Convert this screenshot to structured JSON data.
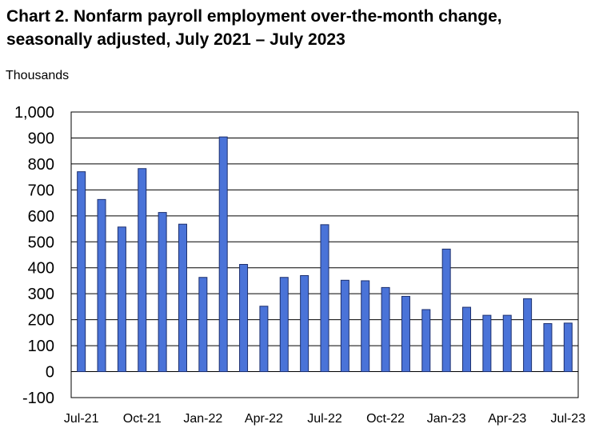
{
  "chart_data": {
    "type": "bar",
    "title_line1": "Chart 2. Nonfarm payroll employment over-the-month change,",
    "title_line2": "seasonally adjusted, July 2021 – July 2023",
    "ylabel": "Thousands",
    "xlabel": "",
    "ylim": [
      -100,
      1000
    ],
    "yticks": [
      "-100",
      "0",
      "100",
      "200",
      "300",
      "400",
      "500",
      "600",
      "700",
      "800",
      "900",
      "1,000"
    ],
    "ytick_values": [
      -100,
      0,
      100,
      200,
      300,
      400,
      500,
      600,
      700,
      800,
      900,
      1000
    ],
    "xtick_labels": [
      "Jul-21",
      "Oct-21",
      "Jan-22",
      "Apr-22",
      "Jul-22",
      "Oct-22",
      "Jan-23",
      "Apr-23",
      "Jul-23"
    ],
    "xtick_every": 3,
    "categories": [
      "Jul-21",
      "Aug-21",
      "Sep-21",
      "Oct-21",
      "Nov-21",
      "Dec-21",
      "Jan-22",
      "Feb-22",
      "Mar-22",
      "Apr-22",
      "May-22",
      "Jun-22",
      "Jul-22",
      "Aug-22",
      "Sep-22",
      "Oct-22",
      "Nov-22",
      "Dec-22",
      "Jan-23",
      "Feb-23",
      "Mar-23",
      "Apr-23",
      "May-23",
      "Jun-23",
      "Jul-23"
    ],
    "values": [
      770,
      663,
      557,
      782,
      613,
      568,
      363,
      904,
      413,
      252,
      363,
      370,
      566,
      352,
      350,
      324,
      290,
      239,
      472,
      248,
      217,
      217,
      281,
      185,
      187
    ],
    "grid": true,
    "bar_color": "#4a73d8",
    "bar_edge_color": "#1c2f6e"
  }
}
